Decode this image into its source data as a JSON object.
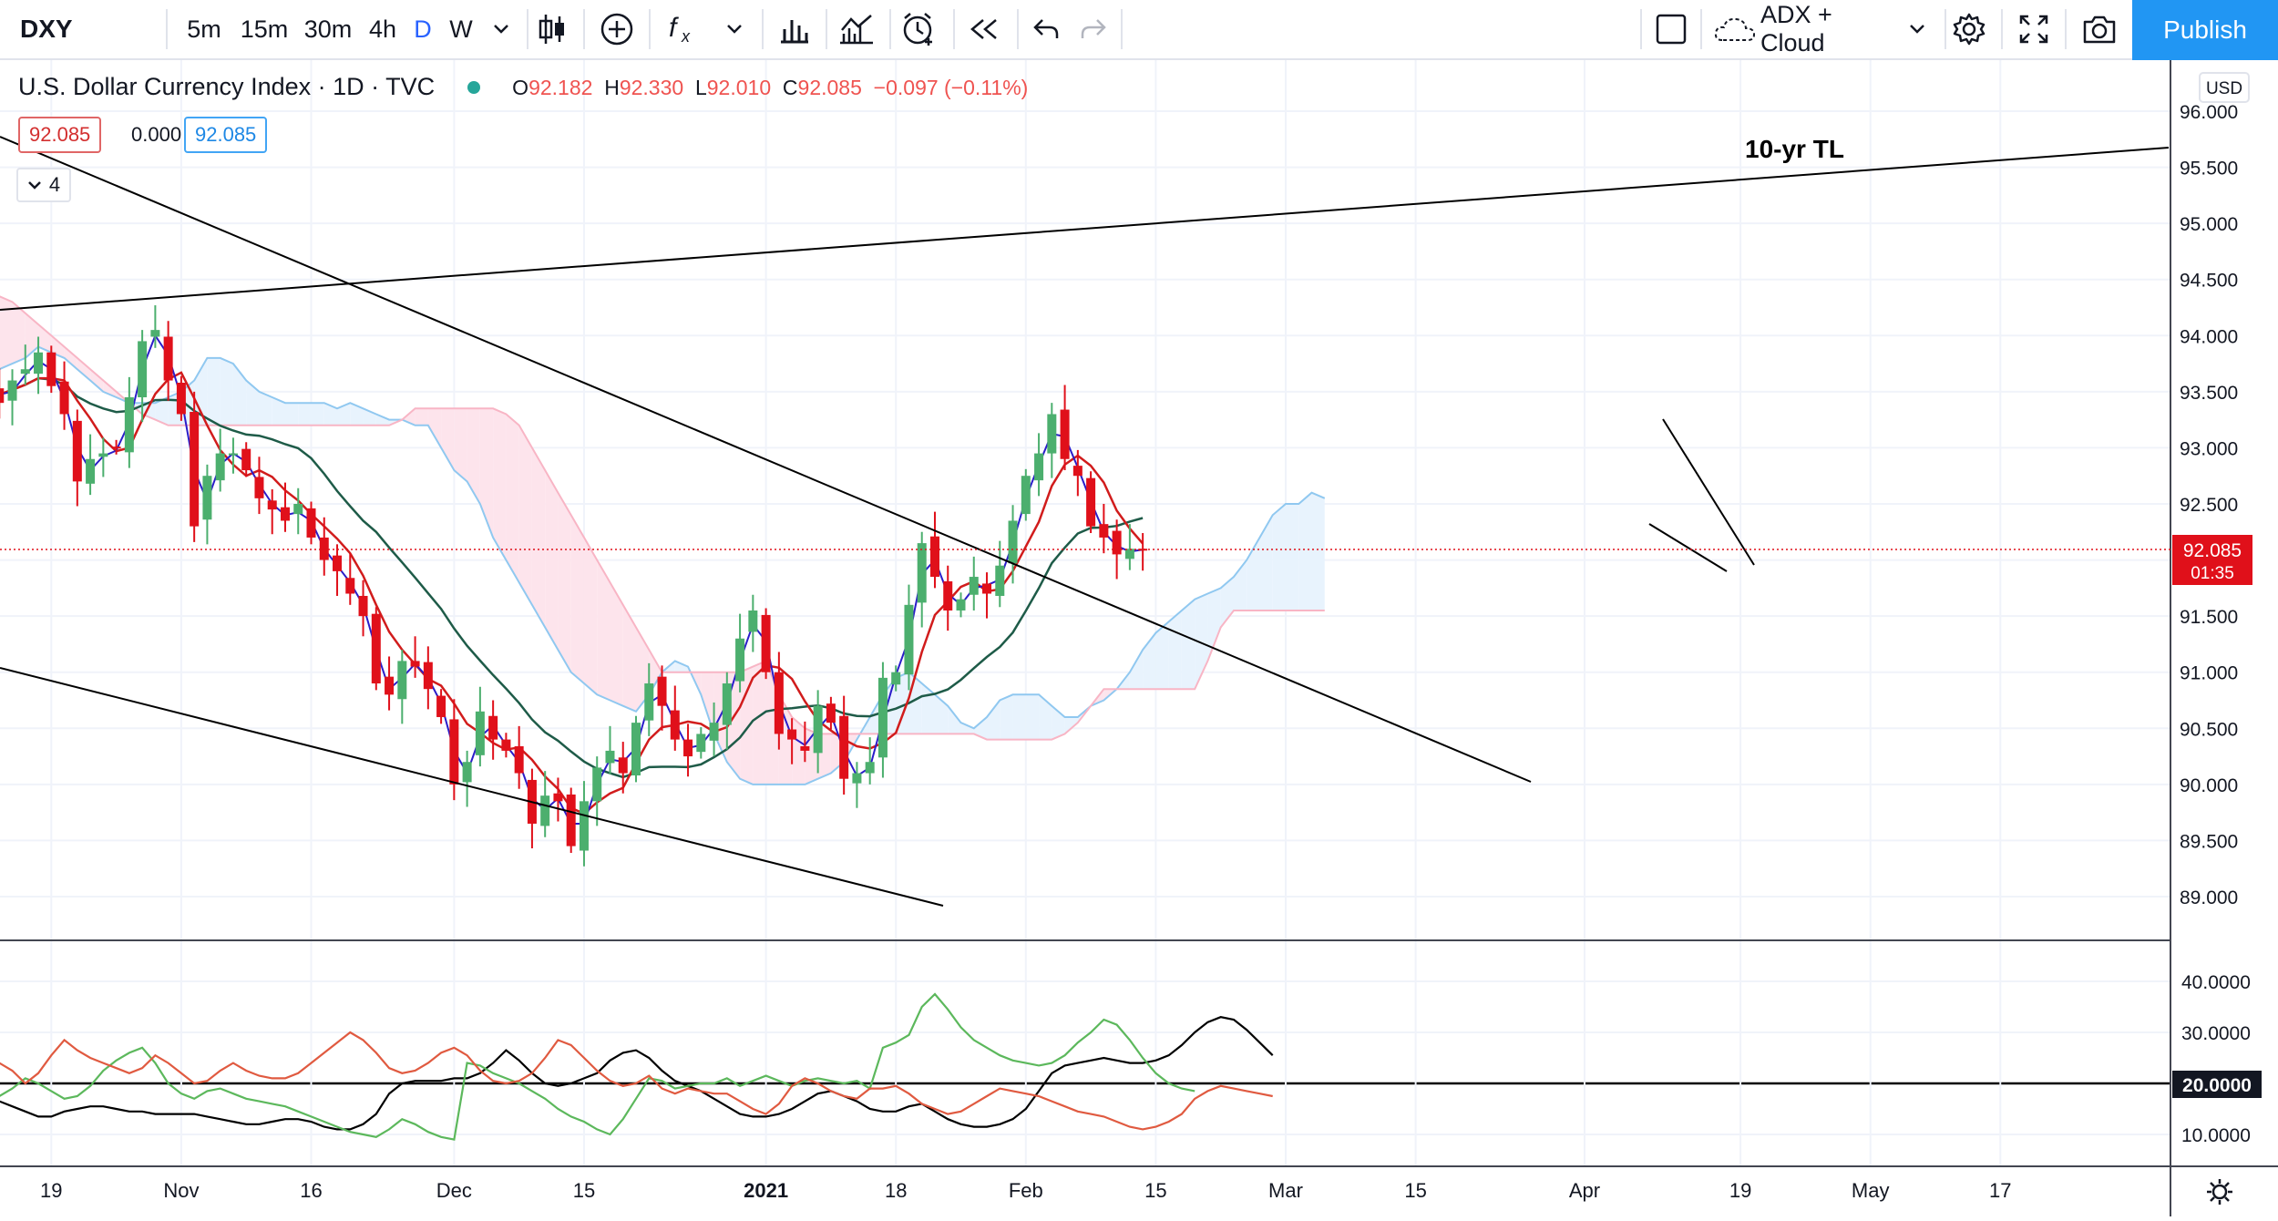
{
  "toolbar": {
    "symbol": "DXY",
    "intervals": [
      "5m",
      "15m",
      "30m",
      "4h",
      "D",
      "W"
    ],
    "active_interval": "D",
    "indicator_template": "ADX + Cloud",
    "publish_label": "Publish"
  },
  "legend": {
    "title": "U.S. Dollar Currency Index · 1D · TVC",
    "o_label": "O",
    "o": "92.182",
    "h_label": "H",
    "h": "92.330",
    "l_label": "L",
    "l": "92.010",
    "c_label": "C",
    "c": "92.085",
    "change": "−0.097 (−0.11%)",
    "value_box_1": "92.085",
    "value_box_2": "0.000",
    "value_box_3": "92.085",
    "collapsed_count": "4"
  },
  "colors": {
    "up": "#26a69a",
    "down": "#ef5350",
    "candle_up": "#4caf6e",
    "candle_down": "#e0101a",
    "cloud_red": "#fde4ec",
    "cloud_blue": "#e8f3fd",
    "span_blue": "#90c8f0",
    "span_red": "#f8b5c5",
    "conversion": "#2a1cc9",
    "base": "#d11c1c",
    "lagging_green": "#1e5b48",
    "adx_black": "#000000",
    "di_plus": "#5cb85c",
    "di_minus": "#e05a40",
    "price_tag": "#e0101a"
  },
  "chart_data": [
    {
      "type": "candlestick",
      "title": "U.S. Dollar Currency Index · 1D · TVC",
      "currency": "USD",
      "y_ticks": [
        "96.000",
        "95.500",
        "95.000",
        "94.500",
        "94.000",
        "93.500",
        "93.000",
        "92.500",
        "92.000",
        "91.500",
        "91.000",
        "90.500",
        "90.000",
        "89.500",
        "89.000"
      ],
      "ylim": [
        88.6,
        96.2
      ],
      "x_ticks": [
        {
          "label": "19",
          "date": "2020-10-19"
        },
        {
          "label": "Nov",
          "date": "2020-11-02"
        },
        {
          "label": "16",
          "date": "2020-11-16"
        },
        {
          "label": "Dec",
          "date": "2020-12-01"
        },
        {
          "label": "15",
          "date": "2020-12-15"
        },
        {
          "label": "2021",
          "date": "2021-01-04"
        },
        {
          "label": "18",
          "date": "2021-01-18"
        },
        {
          "label": "Feb",
          "date": "2021-02-01"
        },
        {
          "label": "15",
          "date": "2021-02-15"
        },
        {
          "label": "Mar",
          "date": "2021-03-01"
        },
        {
          "label": "15",
          "date": "2021-03-15"
        },
        {
          "label": "Apr",
          "date": "2021-04-01"
        },
        {
          "label": "19",
          "date": "2021-04-19"
        },
        {
          "label": "May",
          "date": "2021-05-03"
        },
        {
          "label": "17",
          "date": "2021-05-17"
        }
      ],
      "last_price": "92.085",
      "countdown": "01:35",
      "annotation": "10-yr TL",
      "close": [
        93.55,
        93.4,
        93.6,
        93.7,
        93.85,
        93.55,
        93.3,
        92.7,
        92.9,
        92.95,
        93.0,
        93.45,
        93.95,
        94.05,
        93.6,
        93.3,
        92.3,
        92.75,
        92.95,
        92.95,
        92.8,
        92.55,
        92.45,
        92.35,
        92.5,
        92.2,
        92.0,
        91.9,
        91.7,
        91.5,
        90.9,
        90.8,
        91.1,
        91.05,
        90.85,
        90.6,
        90.0,
        90.2,
        90.65,
        90.4,
        90.3,
        90.1,
        89.65,
        89.9,
        89.85,
        89.45,
        89.85,
        90.15,
        90.3,
        90.1,
        90.55,
        90.9,
        90.7,
        90.4,
        90.25,
        90.45,
        90.55,
        90.9,
        91.3,
        91.55,
        91.0,
        90.45,
        90.4,
        90.3,
        90.7,
        90.55,
        90.05,
        90.1,
        90.2,
        90.95,
        91.0,
        91.6,
        92.15,
        91.85,
        91.55,
        91.65,
        91.85,
        91.7,
        91.95,
        92.35,
        92.75,
        92.95,
        93.3,
        92.9,
        92.75,
        92.3,
        92.2,
        92.05,
        92.1,
        92.085
      ],
      "ichimoku": {
        "span_a_note": "blue cloud boundary",
        "span_b_note": "red cloud boundary",
        "span_a": [
          93.6,
          93.7,
          93.75,
          93.8,
          93.9,
          93.85,
          93.8,
          93.7,
          93.6,
          93.5,
          93.45,
          93.4,
          93.4,
          93.4,
          93.45,
          93.5,
          93.6,
          93.8,
          93.8,
          93.75,
          93.6,
          93.5,
          93.45,
          93.4,
          93.4,
          93.4,
          93.4,
          93.35,
          93.4,
          93.35,
          93.3,
          93.25,
          93.25,
          93.2,
          93.2,
          93.0,
          92.8,
          92.7,
          92.5,
          92.2,
          92.0,
          91.8,
          91.6,
          91.4,
          91.2,
          91.0,
          90.9,
          90.8,
          90.75,
          90.7,
          90.65,
          90.8,
          91.0,
          91.1,
          91.05,
          90.8,
          90.45,
          90.2,
          90.05,
          90.0,
          90.0,
          90.0,
          90.0,
          90.0,
          90.05,
          90.1,
          90.2,
          90.4,
          90.6,
          90.8,
          90.95,
          91.0,
          90.9,
          90.8,
          90.7,
          90.55,
          90.5,
          90.6,
          90.75,
          90.8,
          90.8,
          90.8,
          90.7,
          90.6,
          90.6,
          90.7,
          90.75,
          90.85,
          91.0,
          91.2,
          91.35,
          91.45,
          91.55,
          91.65,
          91.7,
          91.75,
          91.85,
          92.0,
          92.2,
          92.4,
          92.5,
          92.5,
          92.6,
          92.55
        ],
        "span_b": [
          94.35,
          94.35,
          94.3,
          94.2,
          94.1,
          94.0,
          93.9,
          93.8,
          93.7,
          93.6,
          93.5,
          93.4,
          93.3,
          93.25,
          93.2,
          93.2,
          93.2,
          93.2,
          93.2,
          93.2,
          93.2,
          93.2,
          93.2,
          93.2,
          93.2,
          93.2,
          93.2,
          93.2,
          93.2,
          93.2,
          93.2,
          93.2,
          93.25,
          93.35,
          93.35,
          93.35,
          93.35,
          93.35,
          93.35,
          93.35,
          93.3,
          93.2,
          93.0,
          92.8,
          92.6,
          92.4,
          92.2,
          92.0,
          91.8,
          91.6,
          91.4,
          91.2,
          91.0,
          91.0,
          91.0,
          91.0,
          91.0,
          91.0,
          91.0,
          91.05,
          91.1,
          90.8,
          90.6,
          90.5,
          90.45,
          90.45,
          90.45,
          90.45,
          90.45,
          90.45,
          90.45,
          90.45,
          90.45,
          90.45,
          90.45,
          90.45,
          90.45,
          90.4,
          90.4,
          90.4,
          90.4,
          90.4,
          90.4,
          90.45,
          90.55,
          90.7,
          90.85,
          90.85,
          90.85,
          90.85,
          90.85,
          90.85,
          90.85,
          90.85,
          91.1,
          91.4,
          91.55,
          91.55,
          91.55,
          91.55,
          91.55,
          91.55,
          91.55,
          91.55
        ]
      }
    },
    {
      "type": "line",
      "title": "ADX",
      "y_ticks": [
        "40.0000",
        "30.0000",
        "20.0000",
        "10.0000"
      ],
      "ylim": [
        3,
        46
      ],
      "highlight_value": "20.0000",
      "series": [
        {
          "color": "#000000",
          "values": [
            17.5,
            16.5,
            15.5,
            14.5,
            13.5,
            13.5,
            14.5,
            15.0,
            15.5,
            15.5,
            15.0,
            14.5,
            14.5,
            14.0,
            14.0,
            14.0,
            14.0,
            13.5,
            13.0,
            12.5,
            12.0,
            12.0,
            12.5,
            13.0,
            13.0,
            12.5,
            11.5,
            11.0,
            11.0,
            12.0,
            14.0,
            18.0,
            20.0,
            20.5,
            20.5,
            20.5,
            21.0,
            21.0,
            22.0,
            24.0,
            26.5,
            24.5,
            22.0,
            20.0,
            19.5,
            20.0,
            21.0,
            22.0,
            24.5,
            26.0,
            26.5,
            25.0,
            22.5,
            20.5,
            19.5,
            18.5,
            17.0,
            15.5,
            14.0,
            13.5,
            13.5,
            14.0,
            15.0,
            16.5,
            18.0,
            18.5,
            17.5,
            16.5,
            15.0,
            14.5,
            14.5,
            15.5,
            16.0,
            14.5,
            13.0,
            12.0,
            11.5,
            11.5,
            12.0,
            13.0,
            15.0,
            18.5,
            22.0,
            23.5,
            24.0,
            24.5,
            25.0,
            24.5,
            24.0,
            24.0,
            24.5,
            25.5,
            27.5,
            30.0,
            32.0,
            33.0,
            32.5,
            30.5,
            28.0,
            25.5
          ]
        },
        {
          "color": "#5cb85c",
          "values": [
            18.5,
            17.5,
            19.0,
            21.0,
            20.0,
            18.5,
            17.0,
            17.5,
            19.5,
            22.5,
            24.5,
            26.0,
            27.0,
            24.0,
            20.0,
            18.0,
            17.0,
            18.5,
            19.0,
            18.0,
            17.0,
            16.5,
            16.0,
            15.5,
            14.5,
            13.5,
            12.5,
            11.5,
            10.5,
            10.0,
            9.5,
            11.0,
            13.0,
            12.0,
            10.5,
            9.5,
            9.0,
            24.0,
            23.5,
            22.0,
            21.0,
            20.0,
            18.5,
            17.0,
            15.0,
            13.5,
            12.5,
            11.0,
            10.0,
            13.0,
            17.0,
            21.0,
            20.5,
            19.0,
            19.5,
            20.0,
            20.0,
            21.0,
            19.5,
            20.5,
            21.5,
            20.5,
            19.5,
            20.5,
            21.0,
            20.5,
            20.0,
            20.5,
            19.0,
            27.0,
            28.0,
            29.5,
            35.0,
            37.5,
            34.5,
            31.0,
            28.5,
            27.0,
            25.5,
            24.5,
            24.0,
            23.5,
            24.0,
            25.5,
            28.0,
            30.0,
            32.5,
            31.5,
            28.5,
            25.0,
            22.0,
            20.0,
            19.0,
            18.5
          ]
        },
        {
          "color": "#e05a40",
          "values": [
            25.0,
            24.0,
            22.5,
            20.0,
            22.0,
            25.5,
            28.5,
            26.5,
            25.0,
            24.0,
            23.0,
            22.0,
            23.0,
            25.5,
            24.0,
            22.0,
            20.0,
            20.5,
            22.5,
            24.0,
            22.5,
            21.5,
            21.0,
            21.0,
            22.0,
            24.0,
            26.0,
            28.0,
            30.0,
            28.5,
            26.0,
            23.0,
            22.0,
            22.5,
            24.0,
            26.0,
            27.0,
            25.5,
            22.5,
            20.5,
            20.0,
            20.5,
            22.0,
            25.0,
            28.5,
            27.5,
            25.0,
            22.5,
            20.5,
            19.5,
            20.0,
            21.5,
            19.0,
            18.0,
            19.0,
            18.5,
            18.0,
            18.0,
            16.5,
            15.0,
            14.0,
            16.0,
            19.5,
            21.0,
            20.0,
            18.5,
            17.5,
            17.0,
            19.0,
            19.0,
            19.5,
            18.0,
            16.0,
            15.0,
            14.0,
            14.5,
            16.0,
            17.5,
            19.0,
            18.5,
            18.0,
            17.5,
            16.5,
            15.5,
            14.5,
            14.0,
            13.5,
            12.5,
            11.5,
            11.0,
            11.5,
            12.5,
            14.0,
            17.0,
            18.5,
            19.5,
            19.0,
            18.5,
            18.0,
            17.5
          ]
        }
      ]
    }
  ]
}
